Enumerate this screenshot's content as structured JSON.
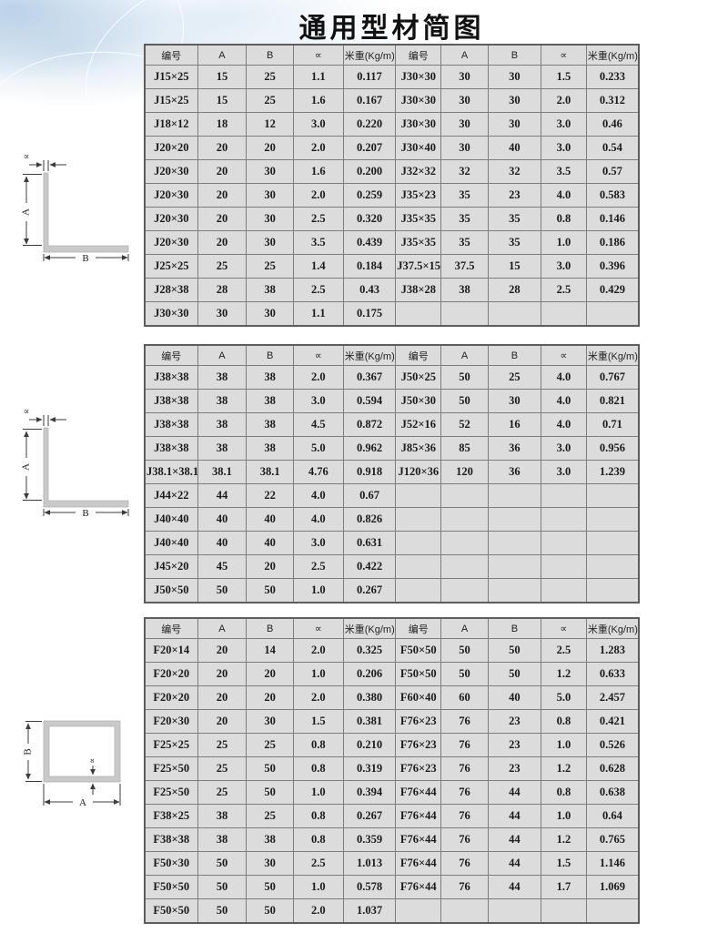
{
  "page": {
    "title": "通用型材简图"
  },
  "colors": {
    "cell_bg": "#dcdcdc",
    "grid_line": "#7d7d7d",
    "outer_border": "#5d5d5d",
    "profile_fill": "#c9c9c9",
    "decor_blue": "#c1d7ea"
  },
  "diagrams": [
    {
      "type": "angle-profile",
      "labels": {
        "a": "A",
        "b": "B",
        "alpha": "∝"
      }
    },
    {
      "type": "angle-profile",
      "labels": {
        "a": "A",
        "b": "B",
        "alpha": "∝"
      }
    },
    {
      "type": "rect-tube-profile",
      "labels": {
        "a": "A",
        "b": "B",
        "alpha": "∝"
      }
    }
  ],
  "tables": [
    {
      "headers": [
        "编号",
        "A",
        "B",
        "∝",
        "米重(Kg/m)",
        "编号",
        "A",
        "B",
        "∝",
        "米重(Kg/m)"
      ],
      "rows": [
        [
          "J15×25",
          "15",
          "25",
          "1.1",
          "0.117",
          "J30×30",
          "30",
          "30",
          "1.5",
          "0.233"
        ],
        [
          "J15×25",
          "15",
          "25",
          "1.6",
          "0.167",
          "J30×30",
          "30",
          "30",
          "2.0",
          "0.312"
        ],
        [
          "J18×12",
          "18",
          "12",
          "3.0",
          "0.220",
          "J30×30",
          "30",
          "30",
          "3.0",
          "0.46"
        ],
        [
          "J20×20",
          "20",
          "20",
          "2.0",
          "0.207",
          "J30×40",
          "30",
          "40",
          "3.0",
          "0.54"
        ],
        [
          "J20×30",
          "20",
          "30",
          "1.6",
          "0.200",
          "J32×32",
          "32",
          "32",
          "3.5",
          "0.57"
        ],
        [
          "J20×30",
          "20",
          "30",
          "2.0",
          "0.259",
          "J35×23",
          "35",
          "23",
          "4.0",
          "0.583"
        ],
        [
          "J20×30",
          "20",
          "30",
          "2.5",
          "0.320",
          "J35×35",
          "35",
          "35",
          "0.8",
          "0.146"
        ],
        [
          "J20×30",
          "20",
          "30",
          "3.5",
          "0.439",
          "J35×35",
          "35",
          "35",
          "1.0",
          "0.186"
        ],
        [
          "J25×25",
          "25",
          "25",
          "1.4",
          "0.184",
          "J37.5×15",
          "37.5",
          "15",
          "3.0",
          "0.396"
        ],
        [
          "J28×38",
          "28",
          "38",
          "2.5",
          "0.43",
          "J38×28",
          "38",
          "28",
          "2.5",
          "0.429"
        ],
        [
          "J30×30",
          "30",
          "30",
          "1.1",
          "0.175",
          "",
          "",
          "",
          "",
          ""
        ]
      ]
    },
    {
      "headers": [
        "编号",
        "A",
        "B",
        "∝",
        "米重(Kg/m)",
        "编号",
        "A",
        "B",
        "∝",
        "米重(Kg/m)"
      ],
      "rows": [
        [
          "J38×38",
          "38",
          "38",
          "2.0",
          "0.367",
          "J50×25",
          "50",
          "25",
          "4.0",
          "0.767"
        ],
        [
          "J38×38",
          "38",
          "38",
          "3.0",
          "0.594",
          "J50×30",
          "50",
          "30",
          "4.0",
          "0.821"
        ],
        [
          "J38×38",
          "38",
          "38",
          "4.5",
          "0.872",
          "J52×16",
          "52",
          "16",
          "4.0",
          "0.71"
        ],
        [
          "J38×38",
          "38",
          "38",
          "5.0",
          "0.962",
          "J85×36",
          "85",
          "36",
          "3.0",
          "0.956"
        ],
        [
          "J38.1×38.1",
          "38.1",
          "38.1",
          "4.76",
          "0.918",
          "J120×36",
          "120",
          "36",
          "3.0",
          "1.239"
        ],
        [
          "J44×22",
          "44",
          "22",
          "4.0",
          "0.67",
          "",
          "",
          "",
          "",
          ""
        ],
        [
          "J40×40",
          "40",
          "40",
          "4.0",
          "0.826",
          "",
          "",
          "",
          "",
          ""
        ],
        [
          "J40×40",
          "40",
          "40",
          "3.0",
          "0.631",
          "",
          "",
          "",
          "",
          ""
        ],
        [
          "J45×20",
          "45",
          "20",
          "2.5",
          "0.422",
          "",
          "",
          "",
          "",
          ""
        ],
        [
          "J50×50",
          "50",
          "50",
          "1.0",
          "0.267",
          "",
          "",
          "",
          "",
          ""
        ]
      ]
    },
    {
      "headers": [
        "编号",
        "A",
        "B",
        "∝",
        "米重(Kg/m)",
        "编号",
        "A",
        "B",
        "∝",
        "米重(Kg/m)"
      ],
      "rows": [
        [
          "F20×14",
          "20",
          "14",
          "2.0",
          "0.325",
          "F50×50",
          "50",
          "50",
          "2.5",
          "1.283"
        ],
        [
          "F20×20",
          "20",
          "20",
          "1.0",
          "0.206",
          "F50×50",
          "50",
          "50",
          "1.2",
          "0.633"
        ],
        [
          "F20×20",
          "20",
          "20",
          "2.0",
          "0.380",
          "F60×40",
          "60",
          "40",
          "5.0",
          "2.457"
        ],
        [
          "F20×30",
          "20",
          "30",
          "1.5",
          "0.381",
          "F76×23",
          "76",
          "23",
          "0.8",
          "0.421"
        ],
        [
          "F25×25",
          "25",
          "25",
          "0.8",
          "0.210",
          "F76×23",
          "76",
          "23",
          "1.0",
          "0.526"
        ],
        [
          "F25×50",
          "25",
          "50",
          "0.8",
          "0.319",
          "F76×23",
          "76",
          "23",
          "1.2",
          "0.628"
        ],
        [
          "F25×50",
          "25",
          "50",
          "1.0",
          "0.394",
          "F76×44",
          "76",
          "44",
          "0.8",
          "0.638"
        ],
        [
          "F38×25",
          "38",
          "25",
          "0.8",
          "0.267",
          "F76×44",
          "76",
          "44",
          "1.0",
          "0.64"
        ],
        [
          "F38×38",
          "38",
          "38",
          "0.8",
          "0.359",
          "F76×44",
          "76",
          "44",
          "1.2",
          "0.765"
        ],
        [
          "F50×30",
          "50",
          "30",
          "2.5",
          "1.013",
          "F76×44",
          "76",
          "44",
          "1.5",
          "1.146"
        ],
        [
          "F50×50",
          "50",
          "50",
          "1.0",
          "0.578",
          "F76×44",
          "76",
          "44",
          "1.7",
          "1.069"
        ],
        [
          "F50×50",
          "50",
          "50",
          "2.0",
          "1.037",
          "",
          "",
          "",
          "",
          ""
        ]
      ]
    }
  ]
}
